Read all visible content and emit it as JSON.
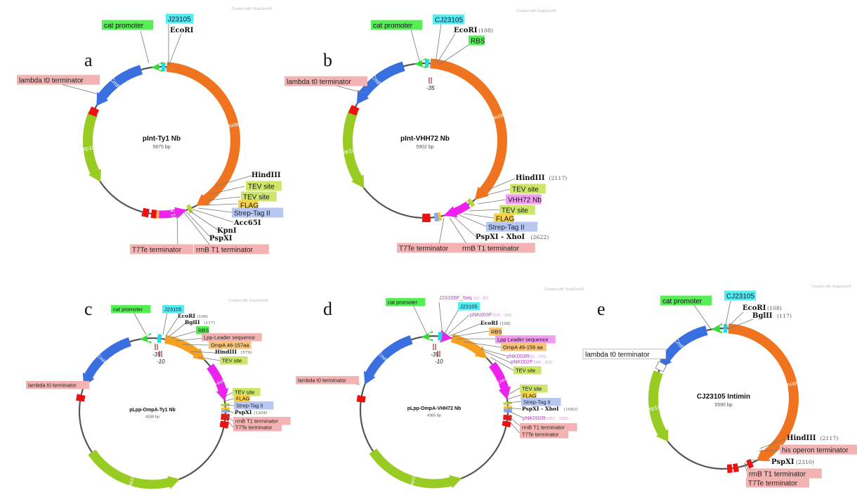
{
  "colors": {
    "cat_promoter": "#33dd33",
    "J23105": "#22dddd",
    "CmR": "#3a6fe0",
    "Intimin": "#f07320",
    "Rep101": "#99cc22",
    "terminator": "#ee1111",
    "nanobody": "#ee22ee",
    "OmpA": "#f5a020",
    "strep": "#8aaaee",
    "flag": "#f2c530",
    "tev": "#b7d633",
    "label_red_bg": "#f4b3b3",
    "label_green_bg": "#55ee55",
    "label_cyan_bg": "#55eeee",
    "label_yellowgreen_bg": "#cde56a",
    "label_orange_bg": "#f7c57a",
    "label_magenta_bg": "#f29df2",
    "label_blue_bg": "#b7c7f0",
    "label_flag_bg": "#f6d24a"
  },
  "watermark": "Created with SnapGene®",
  "panels": [
    {
      "letter": "a",
      "name": "pInt-Ty1 Nb",
      "size": "5875 bp",
      "features": [
        {
          "name": "CmR"
        },
        {
          "name": "Intimin"
        },
        {
          "name": "Rep101"
        },
        {
          "name": "Ty1 Nb"
        }
      ],
      "labels": [
        {
          "text": "cat promoter",
          "style": "green"
        },
        {
          "text": "J23105",
          "style": "cyan"
        },
        {
          "text": "EcoRI",
          "style": "site"
        },
        {
          "text": "lambda t0 terminator",
          "style": "red"
        },
        {
          "text": "HindIII",
          "style": "site"
        },
        {
          "text": "TEV site",
          "style": "yellowgreen"
        },
        {
          "text": "TEV site",
          "style": "yellowgreen"
        },
        {
          "text": "FLAG",
          "style": "flag"
        },
        {
          "text": "Strep-Tag II",
          "style": "blue"
        },
        {
          "text": "Acc65I",
          "style": "site"
        },
        {
          "text": "KpnI",
          "style": "site"
        },
        {
          "text": "PspXI",
          "style": "site"
        },
        {
          "text": "T7Te terminator",
          "style": "red"
        },
        {
          "text": "rrnB T1 terminator",
          "style": "red"
        }
      ]
    },
    {
      "letter": "b",
      "name": "pInt-VHH72 Nb",
      "size": "5902 bp",
      "features": [
        {
          "name": "CmR"
        },
        {
          "name": "Intimin"
        },
        {
          "name": "Rep101"
        }
      ],
      "minus35": "-35",
      "labels": [
        {
          "text": "cat promoter",
          "style": "green"
        },
        {
          "text": "CJ23105",
          "style": "cyan"
        },
        {
          "text": "EcoRI",
          "style": "site",
          "pos": "(108)"
        },
        {
          "text": "RBS",
          "style": "green"
        },
        {
          "text": "lambda t0 terminator",
          "style": "red"
        },
        {
          "text": "HindIII",
          "style": "site",
          "pos": "(2117)"
        },
        {
          "text": "TEV site",
          "style": "yellowgreen"
        },
        {
          "text": "VHH72 Nb",
          "style": "magenta"
        },
        {
          "text": "TEV site",
          "style": "yellowgreen"
        },
        {
          "text": "FLAG",
          "style": "flag"
        },
        {
          "text": "Strep-Tag II",
          "style": "blue"
        },
        {
          "text": "PspXI - XhoI",
          "style": "site",
          "pos": "(2622)"
        },
        {
          "text": "T7Te terminator",
          "style": "red"
        },
        {
          "text": "rrnB T1 terminator",
          "style": "red"
        }
      ]
    },
    {
      "letter": "c",
      "name": "pLpp-OmpA-Ty1 Nb",
      "size": "4338 bp",
      "features": [
        {
          "name": "CmR"
        },
        {
          "name": "Rep101"
        },
        {
          "name": "Ty1 Nb"
        }
      ],
      "minus35": "-35",
      "minus10": "-10",
      "labels": [
        {
          "text": "cat promoter",
          "style": "green"
        },
        {
          "text": "J23105",
          "style": "cyan"
        },
        {
          "text": "EcoRI",
          "style": "site",
          "pos": "(108)"
        },
        {
          "text": "BglII",
          "style": "site",
          "pos": "(117)"
        },
        {
          "text": "RBS",
          "style": "green"
        },
        {
          "text": "Lpp-Leader sequence",
          "style": "red"
        },
        {
          "text": "OmpA 46-157aa",
          "style": "orange"
        },
        {
          "text": "HindIII",
          "style": "site",
          "pos": "(579)"
        },
        {
          "text": "TEV site",
          "style": "yellowgreen"
        },
        {
          "text": "lambda t0 terminator",
          "style": "red"
        },
        {
          "text": "TEV site",
          "style": "yellowgreen"
        },
        {
          "text": "FLAG",
          "style": "flag"
        },
        {
          "text": "Strep-Tag II",
          "style": "blue"
        },
        {
          "text": "PspXI",
          "style": "site",
          "pos": "(1204)"
        },
        {
          "text": "rrnB T1 terminator",
          "style": "red"
        },
        {
          "text": "T7Te terminator",
          "style": "red"
        }
      ]
    },
    {
      "letter": "d",
      "name": "pLpp-OmpA-VHH72 Nb",
      "size": "4365 bp",
      "features": [
        {
          "name": "CmR"
        },
        {
          "name": "Rep101"
        },
        {
          "name": "VHH72"
        }
      ],
      "minus35": "-35",
      "minus10": "-10",
      "labels": [
        {
          "text": "cat promoter",
          "style": "green"
        },
        {
          "text": "J23105F_Seq",
          "style": "primer",
          "pos": "(63 .. 87)"
        },
        {
          "text": "J23105",
          "style": "cyan"
        },
        {
          "text": "pNK003F",
          "style": "primer",
          "pos": "(105 .. 152)"
        },
        {
          "text": "EcoRI",
          "style": "site",
          "pos": "(108)"
        },
        {
          "text": "RBS",
          "style": "orange"
        },
        {
          "text": "Lpp Leader sequence",
          "style": "magenta"
        },
        {
          "text": "OmpA 46-156 aa",
          "style": "orange"
        },
        {
          "text": "pNK003R",
          "style": "primer",
          "pos": "(55 .. 570)"
        },
        {
          "text": "pNK002F",
          "style": "primer",
          "pos": "(588 .. 622)"
        },
        {
          "text": "TEV site",
          "style": "yellowgreen"
        },
        {
          "text": "lambda t0 terminator",
          "style": "red"
        },
        {
          "text": "TEV site",
          "style": "yellowgreen"
        },
        {
          "text": "FLAG",
          "style": "flag"
        },
        {
          "text": "Strep-Tag II",
          "style": "blue"
        },
        {
          "text": "PspXI - XhoI",
          "style": "site",
          "pos": "(1083)"
        },
        {
          "text": "pNK002R",
          "style": "primer",
          "pos": "(1057 .. 1092)"
        },
        {
          "text": "rrnB T1 terminator",
          "style": "red"
        },
        {
          "text": "T7Te terminator",
          "style": "red"
        }
      ]
    },
    {
      "letter": "e",
      "name": "CJ23105 Intimin",
      "size": "5590 bp",
      "features": [
        {
          "name": "CmR"
        },
        {
          "name": "Intimin"
        },
        {
          "name": "Rep101"
        }
      ],
      "labels": [
        {
          "text": "cat promoter",
          "style": "green"
        },
        {
          "text": "CJ23105",
          "style": "cyan"
        },
        {
          "text": "EcoRI",
          "style": "site",
          "pos": "(108)"
        },
        {
          "text": "BglII",
          "style": "site",
          "pos": "(117)"
        },
        {
          "text": "lambda t0 terminator",
          "style": "white"
        },
        {
          "text": "HindIII",
          "style": "site",
          "pos": "(2117)"
        },
        {
          "text": "his operon terminator",
          "style": "red"
        },
        {
          "text": "PspXI",
          "style": "site",
          "pos": "(2310)"
        },
        {
          "text": "rrnB T1 terminator",
          "style": "red"
        },
        {
          "text": "T7Te terminator",
          "style": "red"
        }
      ]
    }
  ]
}
